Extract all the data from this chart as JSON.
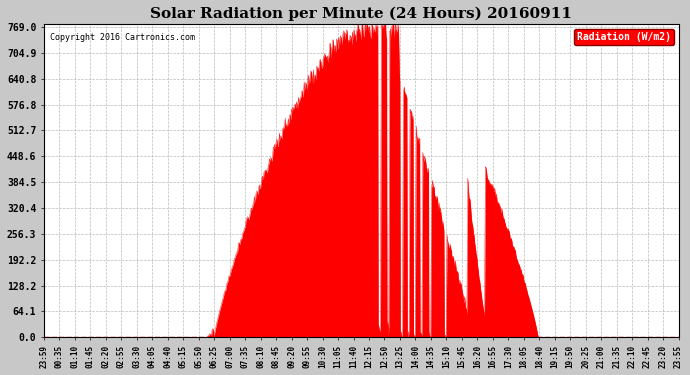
{
  "title": "Solar Radiation per Minute (24 Hours) 20160911",
  "copyright_text": "Copyright 2016 Cartronics.com",
  "legend_label": "Radiation (W/m2)",
  "yticks": [
    0.0,
    64.1,
    128.2,
    192.2,
    256.3,
    320.4,
    384.5,
    448.6,
    512.7,
    576.8,
    640.8,
    704.9,
    769.0
  ],
  "ymin": 0.0,
  "ymax": 769.0,
  "fill_color": "red",
  "line_color": "red",
  "background_color": "#f0f0f0",
  "grid_color": "#aaaaaa",
  "title_fontsize": 11,
  "xtick_labels": [
    "23:59",
    "00:35",
    "01:10",
    "01:45",
    "02:20",
    "02:55",
    "03:30",
    "04:05",
    "04:40",
    "05:15",
    "05:50",
    "06:25",
    "07:00",
    "07:35",
    "08:10",
    "08:45",
    "09:20",
    "09:55",
    "10:30",
    "11:05",
    "11:40",
    "12:15",
    "12:50",
    "13:25",
    "14:00",
    "14:35",
    "15:10",
    "15:45",
    "16:20",
    "16:55",
    "17:30",
    "18:05",
    "18:40",
    "19:15",
    "19:50",
    "20:25",
    "21:00",
    "21:35",
    "22:10",
    "22:45",
    "23:20",
    "23:55"
  ],
  "num_points": 1440,
  "sunrise_index": 385,
  "sunset_index": 1120,
  "peak_index": 755,
  "peak_value": 769.0,
  "noise_seed": 42
}
